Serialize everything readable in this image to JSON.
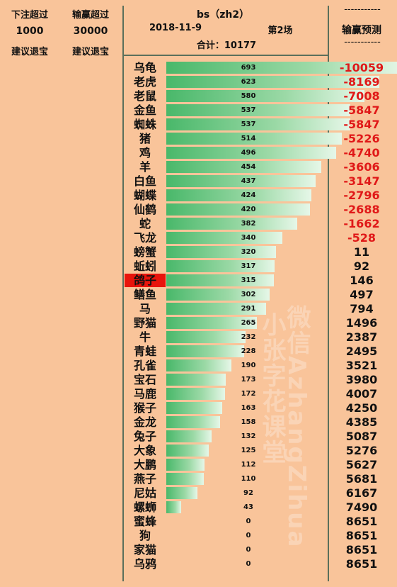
{
  "header": {
    "bet_exceed_label": "下注超过",
    "win_exceed_label": "输赢超过",
    "bet_exceed_value": "1000",
    "win_exceed_value": "30000",
    "suggest_1": "建议退宝",
    "suggest_2": "建议退宝",
    "title": "bs（zh2）",
    "date": "2018-11-9",
    "round": "第2场",
    "total": "合计：10177",
    "dashes_top": "-----------",
    "pred_header": "输赢预测",
    "dashes_bottom": "-----------"
  },
  "watermark": {
    "line1": "微信AzhangZihua",
    "line2": "小张字花课堂"
  },
  "colors": {
    "background": "#f9c49a",
    "highlight": "#e8140c",
    "negative": "#e01818",
    "bar_start": "#49b86a",
    "bar_end": "#e6f7e8"
  },
  "chart_data": {
    "type": "bar",
    "orientation": "horizontal",
    "highlighted_category": "鸽子",
    "categories": [
      "乌龟",
      "老虎",
      "老鼠",
      "金鱼",
      "蜘蛛",
      "猪",
      "鸡",
      "羊",
      "白鱼",
      "蝴蝶",
      "仙鹤",
      "蛇",
      "飞龙",
      "螃蟹",
      "蚯蚓",
      "鸽子",
      "鳝鱼",
      "马",
      "野猫",
      "牛",
      "青蛙",
      "孔雀",
      "宝石",
      "马鹿",
      "猴子",
      "金龙",
      "兔子",
      "大象",
      "大鹏",
      "燕子",
      "尼姑",
      "螺蛳",
      "蜜蜂",
      "狗",
      "家猫",
      "乌鸦"
    ],
    "values": [
      693,
      623,
      580,
      537,
      537,
      514,
      496,
      454,
      437,
      424,
      420,
      382,
      340,
      320,
      317,
      315,
      302,
      291,
      265,
      232,
      228,
      190,
      173,
      172,
      163,
      158,
      132,
      125,
      112,
      110,
      92,
      43,
      0,
      0,
      0,
      0
    ],
    "predictions": [
      -10059,
      -8169,
      -7008,
      -5847,
      -5847,
      -5226,
      -4740,
      -3606,
      -3147,
      -2796,
      -2688,
      -1662,
      -528,
      11,
      92,
      146,
      497,
      794,
      1496,
      2387,
      2495,
      3521,
      3980,
      4007,
      4250,
      4385,
      5087,
      5276,
      5627,
      5681,
      6167,
      7490,
      8651,
      8651,
      8651,
      8651
    ],
    "xlim": [
      0,
      693
    ]
  }
}
